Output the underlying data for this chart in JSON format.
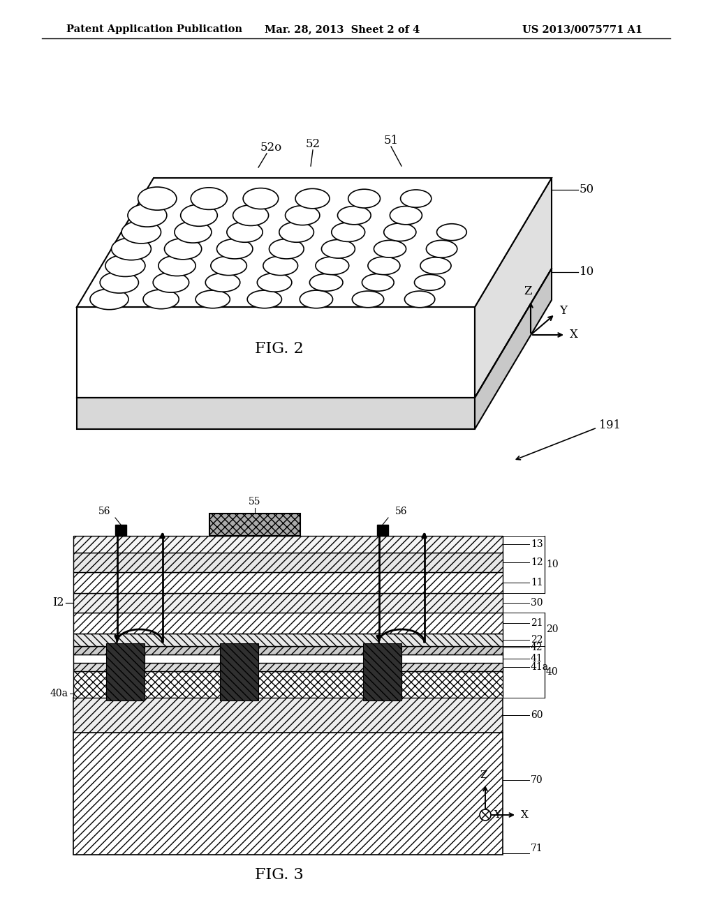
{
  "background_color": "#ffffff",
  "header_left": "Patent Application Publication",
  "header_center": "Mar. 28, 2013  Sheet 2 of 4",
  "header_right": "US 2013/0075771 A1",
  "fig2_title": "FIG. 2",
  "fig3_title": "FIG. 3"
}
